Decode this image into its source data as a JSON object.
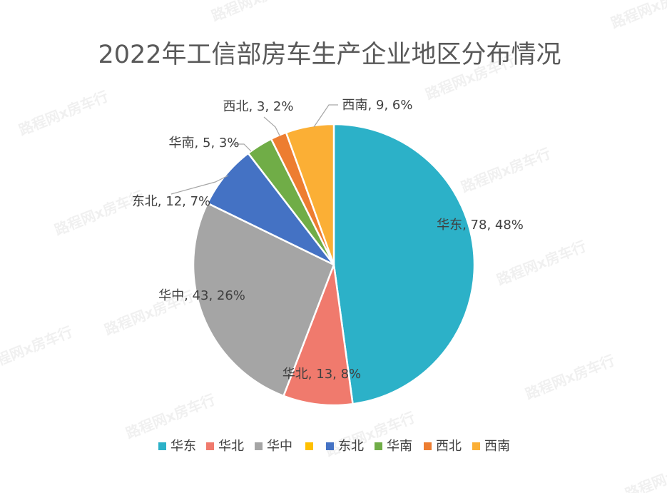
{
  "chart_data": {
    "type": "pie",
    "title": "2022年工信部房车生产企业地区分布情况",
    "slices": [
      {
        "label": "华东",
        "value": 78,
        "percent": "48%",
        "color": "#2CB1C8"
      },
      {
        "label": "华北",
        "value": 13,
        "percent": "8%",
        "color": "#F07A6D"
      },
      {
        "label": "华中",
        "value": 43,
        "percent": "26%",
        "color": "#A5A5A5"
      },
      {
        "label": "东北",
        "value": 12,
        "percent": "7%",
        "color": "#4472C4"
      },
      {
        "label": "华南",
        "value": 5,
        "percent": "3%",
        "color": "#70AD47"
      },
      {
        "label": "西北",
        "value": 3,
        "percent": "2%",
        "color": "#ED7D31"
      },
      {
        "label": "西南",
        "value": 9,
        "percent": "6%",
        "color": "#FBAF35"
      }
    ],
    "legend": {
      "placement": "bottom",
      "items": [
        {
          "label": "华东",
          "color": "#2CB1C8"
        },
        {
          "label": "华北",
          "color": "#F07A6D"
        },
        {
          "label": "华中",
          "color": "#A5A5A5"
        },
        {
          "label": "",
          "color": "#FFC000"
        },
        {
          "label": "东北",
          "color": "#4472C4"
        },
        {
          "label": "华南",
          "color": "#70AD47"
        },
        {
          "label": "西北",
          "color": "#ED7D31"
        },
        {
          "label": "西南",
          "color": "#FBAF35"
        }
      ]
    }
  },
  "watermark": "路程网x房车行"
}
